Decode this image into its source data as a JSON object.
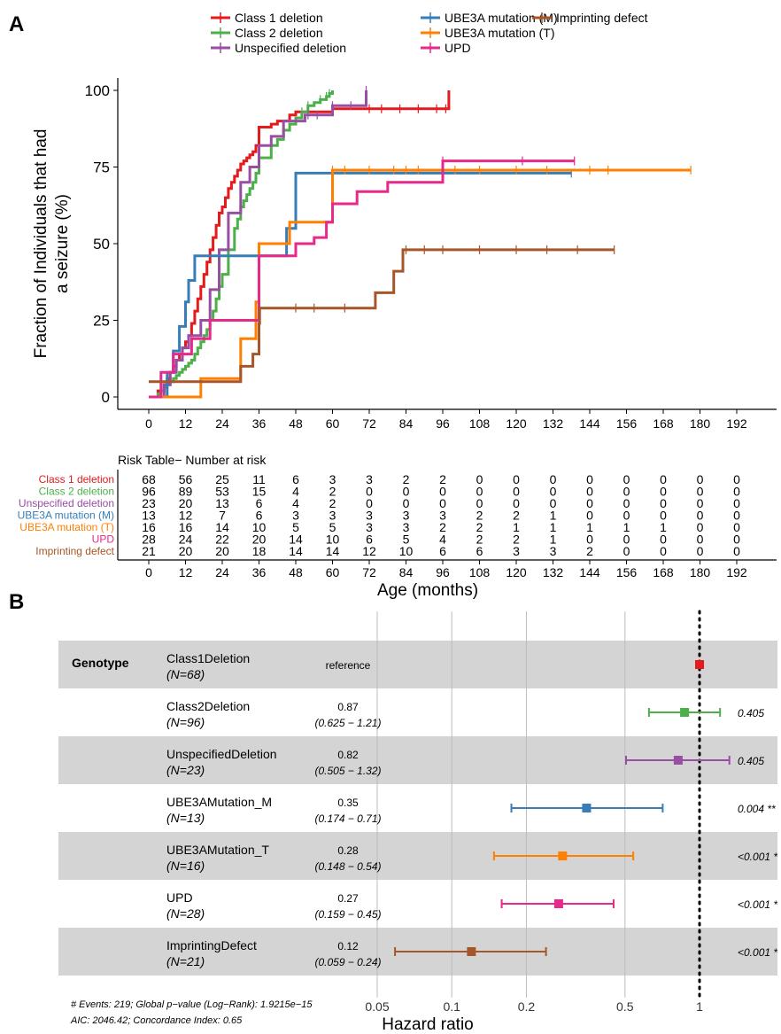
{
  "panel_a": {
    "label": "A",
    "ylabel_line1": "Fraction of Individuals that had",
    "ylabel_line2": "a seizure (%)",
    "risk_title": "Risk Table− Number at risk",
    "xlabel": "Age (months)"
  },
  "panel_b": {
    "label": "B",
    "group_label": "Genotype",
    "xlabel": "Hazard ratio",
    "footnote_line1": "# Events: 219; Global p−value (Log−Rank): 1.9215e−15",
    "footnote_line2": "AIC: 2046.42; Concordance Index: 0.65"
  },
  "chart_data": [
    {
      "type": "line",
      "subtype": "kaplan-meier step curves with censor ticks",
      "ylabel": "Fraction of Individuals that had a seizure (%)",
      "xlabel": "Age (months)",
      "xlim": [
        0,
        192
      ],
      "ylim": [
        0,
        100
      ],
      "x_ticks": [
        0,
        12,
        24,
        36,
        48,
        60,
        72,
        84,
        96,
        108,
        120,
        132,
        144,
        156,
        168,
        180,
        192
      ],
      "y_ticks": [
        0,
        25,
        50,
        75,
        100
      ],
      "legend_position": "top",
      "series": [
        {
          "name": "Class 1 deletion",
          "color": "#e41a1c",
          "x": [
            0,
            3,
            5,
            6,
            7,
            8,
            9,
            10,
            11,
            12,
            13,
            14,
            15,
            16,
            17,
            18,
            19,
            20,
            21,
            22,
            23,
            24,
            25,
            26,
            27,
            28,
            29,
            30,
            31,
            32,
            33,
            34,
            35,
            36,
            40,
            42,
            46,
            48,
            60,
            98
          ],
          "y": [
            0,
            2,
            4,
            6,
            8,
            10,
            12,
            14,
            16,
            18,
            20,
            24,
            28,
            32,
            36,
            40,
            44,
            48,
            52,
            56,
            60,
            62,
            65,
            68,
            70,
            72,
            74,
            76,
            77,
            78,
            79,
            80,
            82,
            88,
            89,
            90,
            92,
            93,
            94,
            100
          ],
          "censor": [
            72,
            76,
            82,
            88,
            94,
            97
          ]
        },
        {
          "name": "Class 2 deletion",
          "color": "#4daf4a",
          "x": [
            0,
            3,
            4,
            5,
            6,
            7,
            8,
            9,
            10,
            11,
            12,
            13,
            14,
            15,
            16,
            17,
            18,
            19,
            20,
            21,
            22,
            23,
            24,
            26,
            28,
            29,
            30,
            31,
            32,
            33,
            34,
            35,
            36,
            40,
            42,
            44,
            46,
            48,
            50,
            52,
            54,
            56,
            58,
            59,
            60
          ],
          "y": [
            0,
            1,
            2,
            3,
            4,
            5,
            6,
            7,
            8,
            9,
            10,
            11,
            12,
            14,
            16,
            18,
            20,
            22,
            25,
            28,
            32,
            36,
            40,
            48,
            55,
            58,
            62,
            64,
            66,
            68,
            70,
            73,
            78,
            82,
            84,
            87,
            89,
            91,
            93,
            95,
            96,
            97,
            98,
            99,
            100
          ],
          "censor": [
            50,
            52,
            56,
            58,
            59
          ]
        },
        {
          "name": "Unspecified deletion",
          "color": "#984ea3",
          "x": [
            0,
            5,
            7,
            9,
            11,
            13,
            17,
            20,
            23,
            26,
            30,
            33,
            36,
            40,
            44,
            51,
            60,
            71
          ],
          "y": [
            0,
            4,
            8,
            12,
            16,
            20,
            25,
            35,
            48,
            60,
            70,
            75,
            82,
            85,
            90,
            92,
            95,
            100
          ],
          "censor": [
            52,
            55,
            60,
            66,
            71
          ]
        },
        {
          "name": "UBE3A mutation (M)",
          "color": "#377eb8",
          "x": [
            0,
            6,
            8,
            10,
            12,
            13,
            15,
            18,
            36,
            45,
            48,
            106,
            138
          ],
          "y": [
            0,
            8,
            15,
            23,
            31,
            38,
            46,
            46,
            46,
            55,
            73,
            73,
            73
          ],
          "censor": [
            96,
            138
          ]
        },
        {
          "name": "UBE3A mutation (T)",
          "color": "#ff7f00",
          "x": [
            0,
            17,
            30,
            35,
            36,
            46,
            57,
            60,
            177
          ],
          "y": [
            0,
            6,
            19,
            31,
            50,
            57,
            57,
            74,
            74
          ],
          "censor": [
            60,
            64,
            72,
            80,
            84,
            88,
            100,
            108,
            120,
            130,
            144,
            150,
            177
          ]
        },
        {
          "name": "UPD",
          "color": "#e7298a",
          "x": [
            0,
            4,
            8,
            14,
            20,
            24,
            36,
            42,
            48,
            54,
            58,
            60,
            68,
            78,
            90,
            96,
            139
          ],
          "y": [
            0,
            8,
            14,
            19,
            25,
            25,
            46,
            46,
            50,
            52,
            57,
            63,
            67,
            70,
            70,
            77,
            77
          ],
          "censor": [
            96,
            122,
            139
          ]
        },
        {
          "name": "Imprinting defect",
          "color": "#a65628",
          "x": [
            0,
            30,
            34,
            36,
            36.2,
            64,
            74,
            80,
            83,
            84,
            152
          ],
          "y": [
            5,
            10,
            14,
            24,
            29,
            29,
            34,
            41,
            48,
            48,
            48
          ],
          "censor": [
            48,
            54,
            64,
            84,
            90,
            96,
            108,
            120,
            130,
            140,
            152
          ]
        }
      ],
      "risk_table": {
        "title": "Risk Table− Number at risk",
        "x": [
          0,
          12,
          24,
          36,
          48,
          60,
          72,
          84,
          96,
          108,
          120,
          132,
          144,
          156,
          168,
          180,
          192
        ],
        "rows": [
          {
            "name": "Class 1 deletion",
            "values": [
              68,
              56,
              25,
              11,
              6,
              3,
              3,
              2,
              2,
              0,
              0,
              0,
              0,
              0,
              0,
              0,
              0
            ]
          },
          {
            "name": "Class 2 deletion",
            "values": [
              96,
              89,
              53,
              15,
              4,
              2,
              0,
              0,
              0,
              0,
              0,
              0,
              0,
              0,
              0,
              0,
              0
            ]
          },
          {
            "name": "Unspecified deletion",
            "values": [
              23,
              20,
              13,
              6,
              4,
              2,
              0,
              0,
              0,
              0,
              0,
              0,
              0,
              0,
              0,
              0,
              0
            ]
          },
          {
            "name": "UBE3A mutation (M)",
            "values": [
              13,
              12,
              7,
              6,
              3,
              3,
              3,
              3,
              3,
              2,
              2,
              1,
              0,
              0,
              0,
              0,
              0
            ]
          },
          {
            "name": "UBE3A mutation (T)",
            "values": [
              16,
              16,
              14,
              10,
              5,
              5,
              3,
              3,
              2,
              2,
              1,
              1,
              1,
              1,
              1,
              0,
              0
            ]
          },
          {
            "name": "UPD",
            "values": [
              28,
              24,
              22,
              20,
              14,
              10,
              6,
              5,
              4,
              2,
              2,
              1,
              0,
              0,
              0,
              0,
              0
            ]
          },
          {
            "name": "Imprinting defect",
            "values": [
              21,
              20,
              20,
              18,
              14,
              14,
              12,
              10,
              6,
              6,
              3,
              3,
              2,
              0,
              0,
              0,
              0
            ]
          }
        ]
      }
    },
    {
      "type": "forest",
      "xlabel": "Hazard ratio",
      "x_scale": "log",
      "x_ticks": [
        0.05,
        0.1,
        0.2,
        0.5,
        1
      ],
      "x_tick_labels": [
        "0.05",
        "0.1",
        "0.2",
        "0.5",
        "1"
      ],
      "reference_line": 1,
      "rows": [
        {
          "name": "Class1Deletion",
          "n": "(N=68)",
          "hr_text": "reference",
          "ci_text": "",
          "hr": 1,
          "lo": null,
          "hi": null,
          "p": "",
          "color": "#e41a1c",
          "shaded": true
        },
        {
          "name": "Class2Deletion",
          "n": "(N=96)",
          "hr_text": "0.87",
          "ci_text": "(0.625 − 1.21)",
          "hr": 0.87,
          "lo": 0.625,
          "hi": 1.21,
          "p": "0.405",
          "color": "#4daf4a",
          "shaded": false
        },
        {
          "name": "UnspecifiedDeletion",
          "n": "(N=23)",
          "hr_text": "0.82",
          "ci_text": "(0.505 − 1.32)",
          "hr": 0.82,
          "lo": 0.505,
          "hi": 1.32,
          "p": "0.405",
          "color": "#984ea3",
          "shaded": true
        },
        {
          "name": "UBE3AMutation_M",
          "n": "(N=13)",
          "hr_text": "0.35",
          "ci_text": "(0.174 − 0.71)",
          "hr": 0.35,
          "lo": 0.174,
          "hi": 0.71,
          "p": "0.004 **",
          "color": "#377eb8",
          "shaded": false
        },
        {
          "name": "UBE3AMutation_T",
          "n": "(N=16)",
          "hr_text": "0.28",
          "ci_text": "(0.148 − 0.54)",
          "hr": 0.28,
          "lo": 0.148,
          "hi": 0.54,
          "p": "<0.001 *",
          "color": "#ff7f00",
          "shaded": true
        },
        {
          "name": "UPD",
          "n": "(N=28)",
          "hr_text": "0.27",
          "ci_text": "(0.159 − 0.45)",
          "hr": 0.27,
          "lo": 0.159,
          "hi": 0.45,
          "p": "<0.001 *",
          "color": "#e7298a",
          "shaded": false
        },
        {
          "name": "ImprintingDefect",
          "n": "(N=21)",
          "hr_text": "0.12",
          "ci_text": "(0.059 − 0.24)",
          "hr": 0.12,
          "lo": 0.059,
          "hi": 0.24,
          "p": "<0.001 *",
          "color": "#a65628",
          "shaded": true
        }
      ]
    }
  ]
}
